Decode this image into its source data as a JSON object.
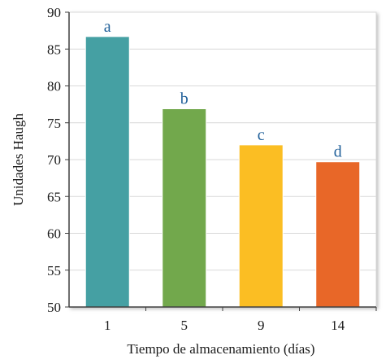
{
  "chart_data": {
    "type": "bar",
    "categories": [
      "1",
      "5",
      "9",
      "14"
    ],
    "values": [
      86.7,
      76.9,
      72.0,
      69.7
    ],
    "bar_labels": [
      "a",
      "b",
      "c",
      "d"
    ],
    "colors": [
      "#45a0a3",
      "#72a84c",
      "#fbbe23",
      "#e86728"
    ],
    "ylim": [
      50,
      90
    ],
    "yticks": [
      "50",
      "55",
      "60",
      "65",
      "70",
      "75",
      "80",
      "85",
      "90"
    ],
    "xlabel": "Tiempo de almacenamiento (días)",
    "ylabel": "Unidades Haugh",
    "grid": true,
    "legend": "none"
  }
}
